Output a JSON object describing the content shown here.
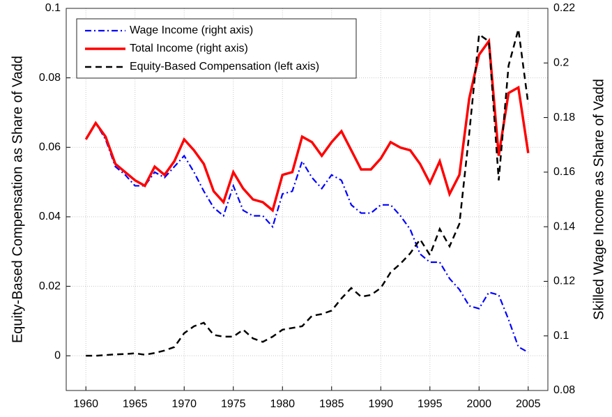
{
  "chart_data": {
    "type": "line",
    "ylabel": "Equity-Based Compensation as Share of Vadd",
    "y2label": "Skilled Wage Income as Share of Vadd",
    "x": [
      1960,
      1961,
      1962,
      1963,
      1964,
      1965,
      1966,
      1967,
      1968,
      1969,
      1970,
      1971,
      1972,
      1973,
      1974,
      1975,
      1976,
      1977,
      1978,
      1979,
      1980,
      1981,
      1982,
      1983,
      1984,
      1985,
      1986,
      1987,
      1988,
      1989,
      1990,
      1991,
      1992,
      1993,
      1994,
      1995,
      1996,
      1997,
      1998,
      1999,
      2000,
      2001,
      2002,
      2003,
      2004,
      2005
    ],
    "xlim": [
      1958,
      2007
    ],
    "xticks": [
      1960,
      1965,
      1970,
      1975,
      1980,
      1985,
      1990,
      1995,
      2000,
      2005
    ],
    "ylim": [
      -0.01,
      0.1
    ],
    "yticks": [
      0,
      0.02,
      0.04,
      0.06,
      0.08,
      0.1
    ],
    "y2lim": [
      0.08,
      0.22
    ],
    "y2ticks": [
      0.08,
      0.1,
      0.12,
      0.14,
      0.16,
      0.18,
      0.2,
      0.22
    ],
    "grid": true,
    "legend": "upper left",
    "series": [
      {
        "name": "Wage Income (right axis)",
        "color": "#0000ff",
        "axis": "y2",
        "dash": "dashdot",
        "values": [
          0.172,
          0.178,
          0.172,
          0.162,
          0.159,
          0.155,
          0.155,
          0.16,
          0.158,
          0.162,
          0.166,
          0.16,
          0.153,
          0.147,
          0.144,
          0.155,
          0.146,
          0.144,
          0.144,
          0.14,
          0.152,
          0.153,
          0.164,
          0.158,
          0.154,
          0.159,
          0.157,
          0.148,
          0.145,
          0.145,
          0.148,
          0.148,
          0.144,
          0.139,
          0.13,
          0.127,
          0.127,
          0.121,
          0.117,
          0.111,
          0.11,
          0.116,
          0.115,
          0.106,
          0.096,
          0.094
        ]
      },
      {
        "name": "Total Income (right axis)",
        "color": "#ff0000",
        "axis": "y2",
        "dash": "solid",
        "values": [
          0.172,
          0.178,
          0.173,
          0.163,
          0.16,
          0.157,
          0.155,
          0.162,
          0.159,
          0.164,
          0.172,
          0.168,
          0.163,
          0.153,
          0.149,
          0.16,
          0.154,
          0.15,
          0.149,
          0.146,
          0.159,
          0.16,
          0.173,
          0.171,
          0.166,
          0.171,
          0.175,
          0.168,
          0.161,
          0.161,
          0.165,
          0.171,
          0.169,
          0.168,
          0.163,
          0.156,
          0.164,
          0.152,
          0.159,
          0.187,
          0.203,
          0.208,
          0.166,
          0.189,
          0.191,
          0.167
        ]
      },
      {
        "name": "Equity-Based Compensation (left axis)",
        "color": "#000000",
        "axis": "y",
        "dash": "dashed",
        "values": [
          0.0,
          0.0,
          0.0002,
          0.0004,
          0.0005,
          0.0007,
          0.0003,
          0.0008,
          0.0015,
          0.0025,
          0.0065,
          0.0085,
          0.0095,
          0.006,
          0.0055,
          0.0055,
          0.0075,
          0.005,
          0.004,
          0.0055,
          0.0075,
          0.008,
          0.0085,
          0.0115,
          0.012,
          0.013,
          0.0165,
          0.0195,
          0.017,
          0.0175,
          0.0195,
          0.024,
          0.0265,
          0.0295,
          0.0335,
          0.029,
          0.0365,
          0.0315,
          0.038,
          0.064,
          0.0925,
          0.0905,
          0.0505,
          0.0835,
          0.094,
          0.0725
        ]
      }
    ]
  }
}
